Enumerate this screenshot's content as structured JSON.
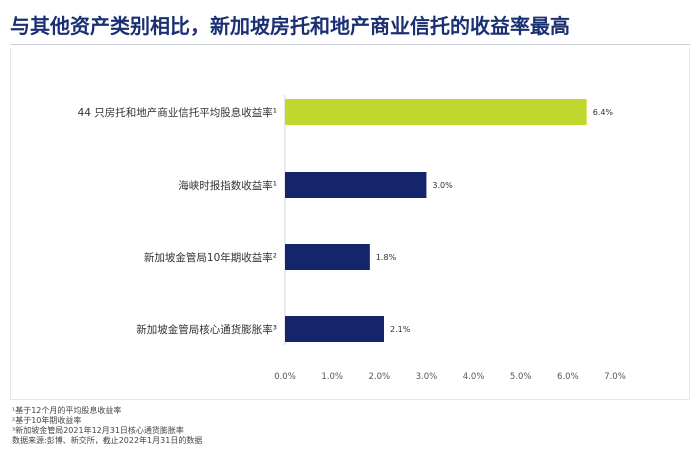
{
  "title": "与其他资产类别相比，新加坡房托和地产商业信托的收益率最高",
  "footnotes": [
    "¹基于12个月的平均股息收益率",
    "²基于10年期收益率",
    "³新加坡金管局2021年12月31日核心通货膨胀率",
    "数据来源:彭博、新交所，截止2022年1月31日的数据"
  ],
  "colors": {
    "highlight": "#c1d82f",
    "bar": "#15256b",
    "title": "#1b2f73"
  },
  "chart_data": {
    "type": "bar",
    "orientation": "horizontal",
    "categories": [
      "44 只房托和地产商业信托平均股息收益率¹",
      "海峡时报指数收益率¹",
      "新加坡金管局10年期收益率²",
      "新加坡金管局核心通货膨胀率³"
    ],
    "values": [
      6.4,
      3.0,
      1.8,
      2.1
    ],
    "value_labels": [
      "6.4%",
      "3.0%",
      "1.8%",
      "2.1%"
    ],
    "bar_colors": [
      "#c1d82f",
      "#15256b",
      "#15256b",
      "#15256b"
    ],
    "xlim": [
      0,
      7
    ],
    "xticks": [
      "0.0%",
      "1.0%",
      "2.0%",
      "3.0%",
      "4.0%",
      "5.0%",
      "6.0%",
      "7.0%"
    ],
    "grid": false
  }
}
